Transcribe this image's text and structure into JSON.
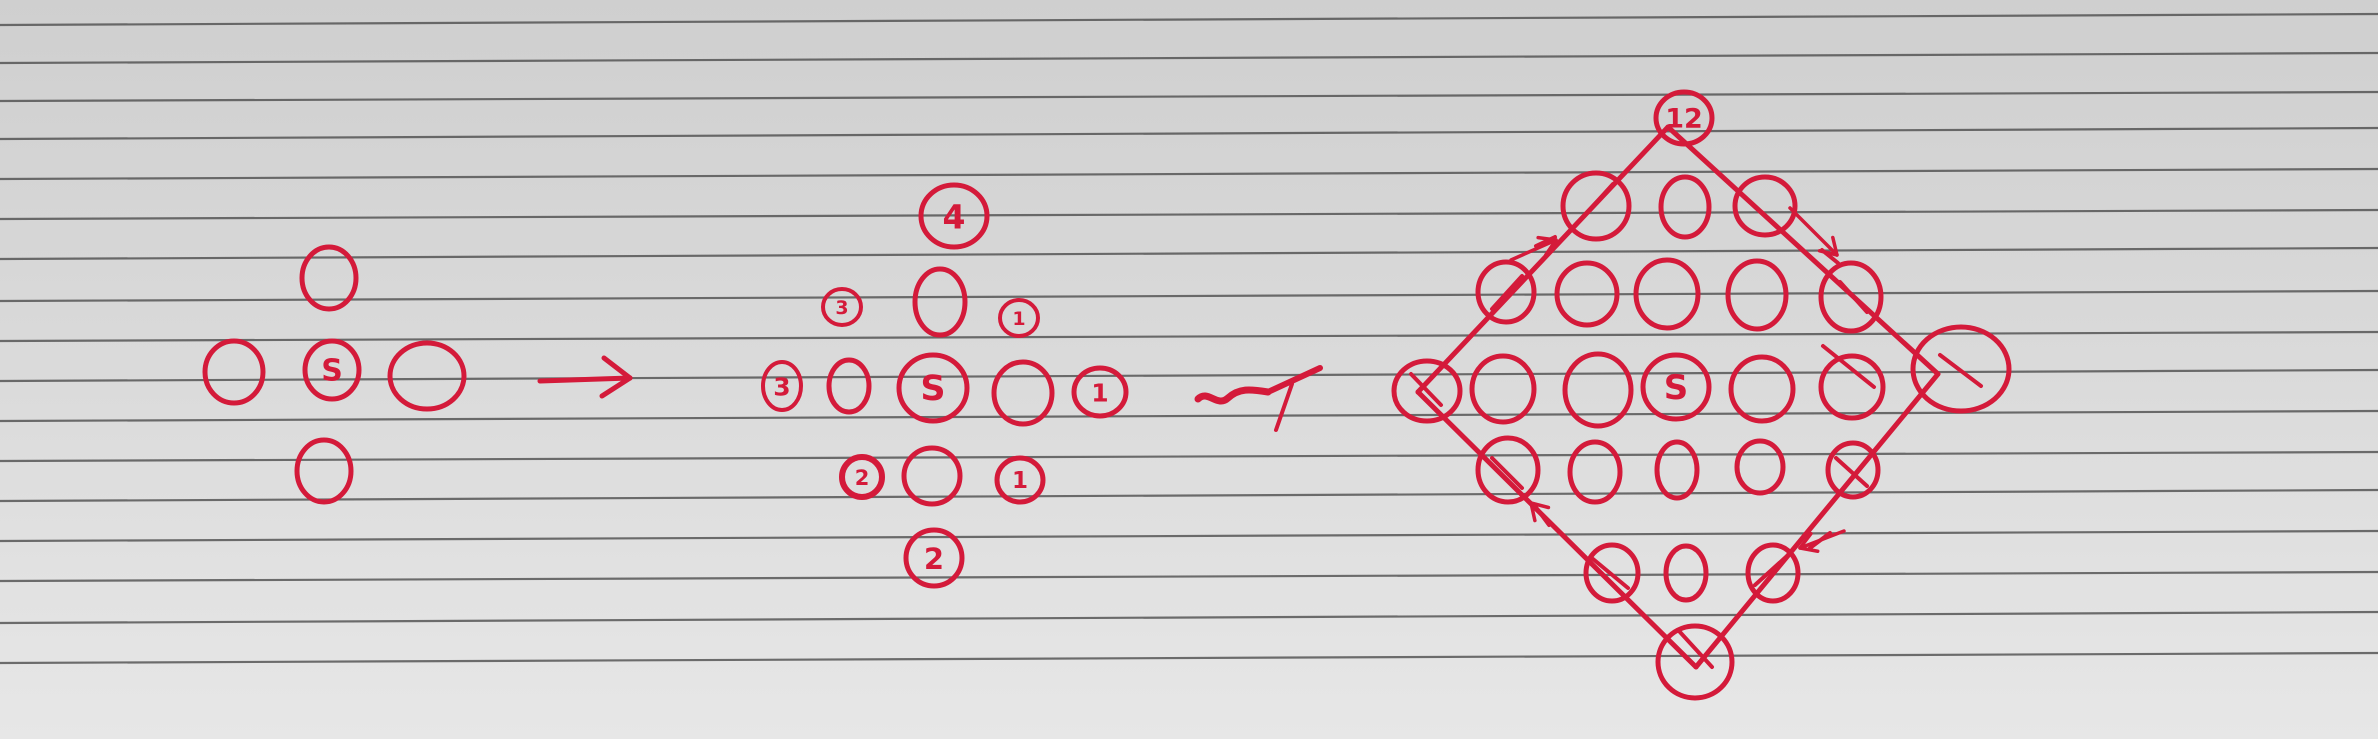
{
  "photo": {
    "subject": "hand-drawn diagram on lined notebook paper",
    "paper_color": "#d9d9d9",
    "rule_color": "#4a4a4a",
    "ink_color": "#d41a3a"
  },
  "labels": {
    "start": "S",
    "step_1": "1",
    "step_2": "2",
    "step_3": "3",
    "step_4": "4",
    "step_12": "12"
  },
  "figures": [
    {
      "id": "figure-1",
      "type": "circles",
      "circles": [
        {
          "label": ""
        },
        {
          "label": ""
        },
        {
          "label": "S"
        },
        {
          "label": ""
        },
        {
          "label": ""
        }
      ]
    },
    {
      "id": "figure-2",
      "type": "circles",
      "circles": [
        {
          "label": "4"
        },
        {
          "label": "3"
        },
        {
          "label": ""
        },
        {
          "label": "1"
        },
        {
          "label": "3"
        },
        {
          "label": ""
        },
        {
          "label": "S"
        },
        {
          "label": ""
        },
        {
          "label": "1"
        },
        {
          "label": "2"
        },
        {
          "label": ""
        },
        {
          "label": "1"
        },
        {
          "label": "2"
        }
      ]
    },
    {
      "id": "figure-3",
      "type": "diamond",
      "circles": [
        {
          "label": "12"
        },
        {
          "label": ""
        },
        {
          "label": ""
        },
        {
          "label": ""
        },
        {
          "label": ""
        },
        {
          "label": ""
        },
        {
          "label": ""
        },
        {
          "label": ""
        },
        {
          "label": ""
        },
        {
          "label": ""
        },
        {
          "label": ""
        },
        {
          "label": ""
        },
        {
          "label": "S"
        },
        {
          "label": ""
        },
        {
          "label": ""
        },
        {
          "label": ""
        },
        {
          "label": ""
        },
        {
          "label": ""
        },
        {
          "label": ""
        },
        {
          "label": ""
        },
        {
          "label": ""
        },
        {
          "label": ""
        },
        {
          "label": ""
        },
        {
          "label": ""
        },
        {
          "label": ""
        }
      ]
    }
  ]
}
